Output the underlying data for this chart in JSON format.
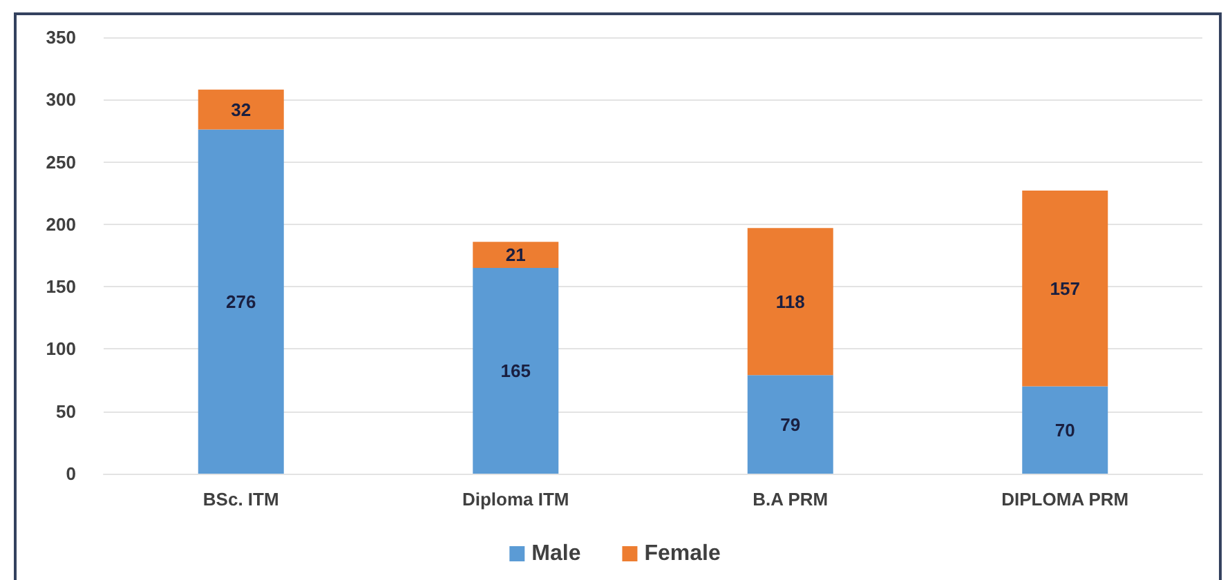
{
  "chart_data": {
    "type": "bar",
    "categories": [
      "BSc. ITM",
      "Diploma ITM",
      "B.A PRM",
      "DIPLOMA PRM"
    ],
    "series": [
      {
        "name": "Male",
        "color": "#5b9bd5",
        "values": [
          276,
          165,
          79,
          70
        ]
      },
      {
        "name": "Female",
        "color": "#ed7d31",
        "values": [
          32,
          21,
          118,
          157
        ]
      }
    ],
    "stacked": true,
    "ylim": [
      0,
      350
    ],
    "yticks": [
      0,
      50,
      100,
      150,
      200,
      250,
      300,
      350
    ],
    "grid": "y",
    "legend": "bottom",
    "data_labels": true
  }
}
